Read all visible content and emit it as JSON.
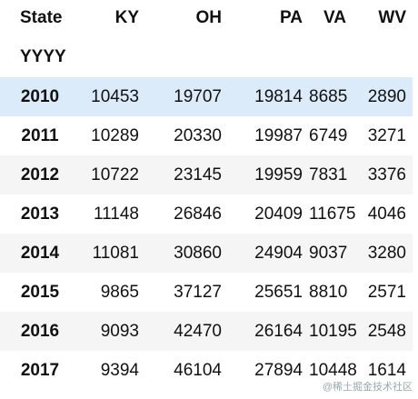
{
  "table": {
    "columns_name": "State",
    "index_name": "YYYY",
    "columns": [
      "KY",
      "OH",
      "PA",
      "VA",
      "WV"
    ],
    "rows": [
      {
        "index": "2010",
        "values": [
          10453,
          19707,
          19814,
          8685,
          2890
        ]
      },
      {
        "index": "2011",
        "values": [
          10289,
          20330,
          19987,
          6749,
          3271
        ]
      },
      {
        "index": "2012",
        "values": [
          10722,
          23145,
          19959,
          7831,
          3376
        ]
      },
      {
        "index": "2013",
        "values": [
          11148,
          26846,
          20409,
          11675,
          4046
        ]
      },
      {
        "index": "2014",
        "values": [
          11081,
          30860,
          24904,
          9037,
          3280
        ]
      },
      {
        "index": "2015",
        "values": [
          9865,
          37127,
          25651,
          8810,
          2571
        ]
      },
      {
        "index": "2016",
        "values": [
          9093,
          42470,
          26164,
          10195,
          2548
        ]
      },
      {
        "index": "2017",
        "values": [
          9394,
          46104,
          27894,
          10448,
          1614
        ]
      }
    ]
  },
  "watermark": "@稀土掘金技术社区"
}
